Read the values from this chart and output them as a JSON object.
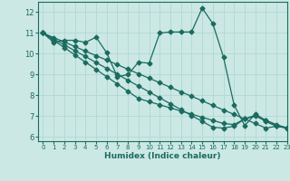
{
  "title": "",
  "xlabel": "Humidex (Indice chaleur)",
  "ylabel": "",
  "bg_color": "#cce8e4",
  "line_color": "#1a6b60",
  "grid_color": "#b0d8d4",
  "xlim": [
    -0.5,
    23
  ],
  "ylim": [
    5.8,
    12.5
  ],
  "yticks": [
    6,
    7,
    8,
    9,
    10,
    11,
    12
  ],
  "xticks": [
    0,
    1,
    2,
    3,
    4,
    5,
    6,
    7,
    8,
    9,
    10,
    11,
    12,
    13,
    14,
    15,
    16,
    17,
    18,
    19,
    20,
    21,
    22,
    23
  ],
  "series": [
    [
      11.0,
      10.55,
      10.65,
      10.65,
      10.55,
      10.8,
      10.05,
      8.9,
      9.0,
      9.6,
      9.55,
      11.0,
      11.05,
      11.05,
      11.05,
      12.2,
      11.45,
      9.85,
      7.55,
      6.55,
      7.1,
      6.8,
      6.55,
      6.45
    ],
    [
      11.0,
      10.78,
      10.57,
      10.35,
      10.13,
      9.91,
      9.7,
      9.48,
      9.26,
      9.04,
      8.83,
      8.61,
      8.39,
      8.17,
      7.96,
      7.74,
      7.52,
      7.3,
      7.09,
      6.87,
      6.65,
      6.43,
      6.52,
      6.43
    ],
    [
      11.0,
      10.72,
      10.43,
      10.15,
      9.87,
      9.58,
      9.3,
      9.02,
      8.73,
      8.45,
      8.17,
      7.88,
      7.6,
      7.32,
      7.03,
      6.75,
      6.47,
      6.43,
      6.52,
      6.87,
      7.05,
      6.74,
      6.52,
      6.43
    ],
    [
      11.0,
      10.65,
      10.3,
      9.95,
      9.6,
      9.25,
      8.9,
      8.55,
      8.2,
      7.85,
      7.7,
      7.55,
      7.4,
      7.25,
      7.1,
      6.95,
      6.8,
      6.65,
      6.6,
      6.87,
      7.0,
      6.8,
      6.6,
      6.43
    ]
  ],
  "marker": "D",
  "markersize": 2.5,
  "linewidth": 0.9
}
